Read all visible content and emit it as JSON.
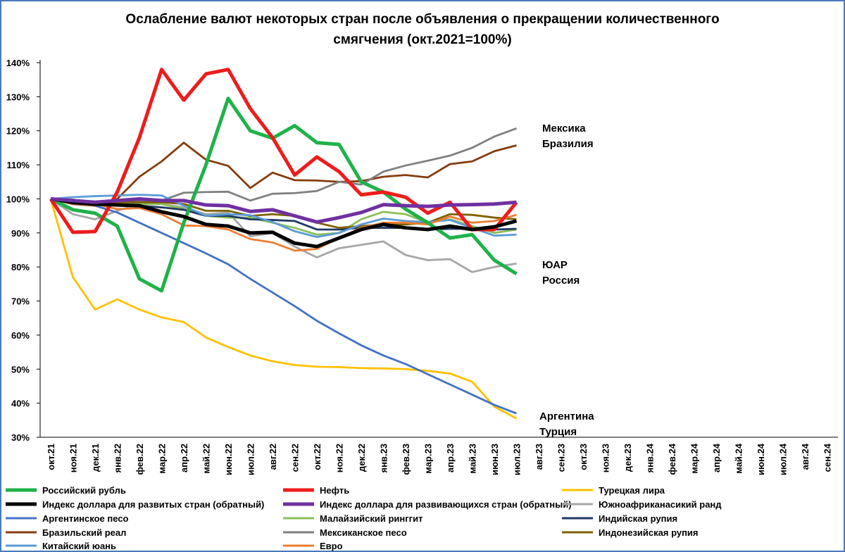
{
  "chart_data": {
    "type": "line",
    "title": "Ослабление валют некоторых стран после объявления о прекращении количественного",
    "subtitle": "смягчения  (окт.2021=100%)",
    "categories": [
      "окт.21",
      "ноя.21",
      "дек.21",
      "янв.22",
      "фев.22",
      "мар.22",
      "апр.22",
      "май.22",
      "июн.22",
      "июл.22",
      "авг.22",
      "сен.22",
      "окт.22",
      "ноя.22",
      "дек.22",
      "янв.23",
      "фев.23",
      "мар.23",
      "апр.23",
      "май.23",
      "июн.23",
      "июл.23",
      "авг.23",
      "сен.23",
      "окт.23",
      "ноя.23",
      "дек.23",
      "янв.24",
      "фев.24",
      "мар.24",
      "апр.24",
      "май.24",
      "июн.24",
      "июл.24",
      "авг.24",
      "сен.24"
    ],
    "ylim": [
      30,
      140
    ],
    "yticks": [
      {
        "value": 30,
        "label": "30%"
      },
      {
        "value": 40,
        "label": "40%"
      },
      {
        "value": 50,
        "label": "50%"
      },
      {
        "value": 60,
        "label": "60%"
      },
      {
        "value": 70,
        "label": "70%"
      },
      {
        "value": 80,
        "label": "80%"
      },
      {
        "value": 90,
        "label": "90%"
      },
      {
        "value": 100,
        "label": "100%"
      },
      {
        "value": 110,
        "label": "110%"
      },
      {
        "value": 120,
        "label": "120%"
      },
      {
        "value": 130,
        "label": "130%"
      },
      {
        "value": 140,
        "label": "140%"
      }
    ],
    "grid": false,
    "annotations": [
      "Мексика",
      "Бразилия",
      "ЮАР",
      "Россия",
      "Аргентина",
      "Турция"
    ],
    "series": [
      {
        "name": "Российский рубль",
        "color": "#1fb24a",
        "values": [
          100,
          96.8,
          95.8,
          92,
          76.5,
          73,
          93,
          110,
          129.5,
          120,
          117.8,
          121.5,
          116.5,
          116,
          105,
          102,
          97,
          93,
          88.5,
          89.5,
          82,
          78,
          null,
          null,
          null,
          null,
          null,
          null,
          null,
          null,
          null,
          null,
          null,
          null,
          null,
          null
        ]
      },
      {
        "name": "Нефть",
        "color": "#ee1c1c",
        "values": [
          100,
          90.2,
          90.4,
          102,
          118,
          138,
          129,
          136.7,
          138,
          126.5,
          118,
          107,
          112.3,
          108,
          101.2,
          102,
          100.5,
          95.8,
          99,
          91,
          91,
          99,
          null,
          null,
          null,
          null,
          null,
          null,
          null,
          null,
          null,
          null,
          null,
          null,
          null,
          null
        ]
      },
      {
        "name": "Турецкая лира",
        "color": "#ffc000",
        "values": [
          100,
          77,
          67.5,
          70.5,
          67.5,
          65.2,
          63.8,
          59.3,
          56.5,
          54,
          52.3,
          51.2,
          50.7,
          50.6,
          50.3,
          50.2,
          50,
          49.5,
          48.7,
          46.3,
          39,
          35.5,
          null,
          null,
          null,
          null,
          null,
          null,
          null,
          null,
          null,
          null,
          null,
          null,
          null,
          null
        ]
      },
      {
        "name": "Индекс доллара для развитых стран (обратный)",
        "color": "#000000",
        "values": [
          100,
          99,
          98.5,
          98.2,
          98,
          96.2,
          94.8,
          92.5,
          92,
          90,
          90.2,
          87,
          86,
          88.5,
          91,
          92.5,
          91.5,
          91,
          92,
          91,
          91.8,
          93.5,
          null,
          null,
          null,
          null,
          null,
          null,
          null,
          null,
          null,
          null,
          null,
          null,
          null,
          null
        ]
      },
      {
        "name": "Индекс доллара для развивающихся стран (обратный)",
        "color": "#7030a0",
        "values": [
          100,
          99.5,
          99,
          99.5,
          100,
          99.5,
          99.5,
          98.2,
          98,
          96.3,
          96.8,
          95,
          93.2,
          94.5,
          96,
          98.3,
          98,
          97.8,
          98.2,
          98.3,
          98.5,
          99,
          null,
          null,
          null,
          null,
          null,
          null,
          null,
          null,
          null,
          null,
          null,
          null,
          null,
          null
        ]
      },
      {
        "name": "Южноафриканасикий ранд",
        "color": "#a6a6a6",
        "values": [
          100,
          95.5,
          94,
          96.5,
          98.5,
          98.5,
          97.5,
          95.5,
          96,
          89,
          90,
          86,
          82.8,
          85.5,
          86.5,
          87.5,
          83.5,
          82,
          82.3,
          78.5,
          80,
          81,
          null,
          null,
          null,
          null,
          null,
          null,
          null,
          null,
          null,
          null,
          null,
          null,
          null,
          null
        ]
      },
      {
        "name": "Аргентинское песо",
        "color": "#4472c4",
        "values": [
          100,
          99,
          98,
          96,
          93,
          90,
          87,
          84,
          80.8,
          76.5,
          72.5,
          68.5,
          64.2,
          60.5,
          57,
          54,
          51.5,
          48.5,
          45.5,
          42.5,
          39.5,
          37,
          null,
          null,
          null,
          null,
          null,
          null,
          null,
          null,
          null,
          null,
          null,
          null,
          null,
          null
        ]
      },
      {
        "name": "Малайзийский ринггит",
        "color": "#8cbf5a",
        "values": [
          100,
          99.5,
          98.5,
          99,
          98.5,
          98.5,
          97,
          95,
          94.5,
          94.5,
          93,
          91.5,
          89.5,
          90,
          94,
          96.2,
          95.5,
          93,
          94,
          92,
          90,
          91,
          null,
          null,
          null,
          null,
          null,
          null,
          null,
          null,
          null,
          null,
          null,
          null,
          null,
          null
        ]
      },
      {
        "name": "Индийская рупия",
        "color": "#1f3864",
        "values": [
          100,
          99.5,
          99,
          98.5,
          98,
          97.5,
          96.8,
          95,
          95,
          94,
          93.8,
          93.5,
          91,
          91,
          91.5,
          91.5,
          91.5,
          91,
          91.2,
          91.2,
          91,
          91.2,
          null,
          null,
          null,
          null,
          null,
          null,
          null,
          null,
          null,
          null,
          null,
          null,
          null,
          null
        ]
      },
      {
        "name": "Бразильский реал",
        "color": "#843c0c",
        "values": [
          100,
          98.5,
          98,
          100,
          106.5,
          111,
          116.5,
          111.5,
          109.7,
          103.2,
          107.7,
          105.5,
          105.4,
          105,
          105.2,
          106.5,
          107,
          106.3,
          110.2,
          111,
          114,
          115.7,
          null,
          null,
          null,
          null,
          null,
          null,
          null,
          null,
          null,
          null,
          null,
          null,
          null,
          null
        ]
      },
      {
        "name": "Мексиканское песо",
        "color": "#808080",
        "values": [
          100,
          99.8,
          98.5,
          99,
          99.5,
          99.5,
          101.8,
          102,
          102.1,
          99.5,
          101.5,
          101.7,
          102.3,
          105,
          104.2,
          108,
          109.8,
          111.2,
          112.7,
          115,
          118.3,
          120.7,
          null,
          null,
          null,
          null,
          null,
          null,
          null,
          null,
          null,
          null,
          null,
          null,
          null,
          null
        ]
      },
      {
        "name": "Индонезийская рупия",
        "color": "#7f6000",
        "values": [
          100,
          99.5,
          98.5,
          99,
          99,
          99,
          98.5,
          96.5,
          96.5,
          95,
          95.5,
          95,
          93,
          91.5,
          92,
          92.5,
          92.5,
          93,
          95.5,
          95.3,
          94.5,
          94,
          null,
          null,
          null,
          null,
          null,
          null,
          null,
          null,
          null,
          null,
          null,
          null,
          null,
          null
        ]
      },
      {
        "name": "Китайский юань",
        "color": "#5b9bd5",
        "values": [
          100,
          100.5,
          100.8,
          101,
          101.2,
          101,
          98,
          95,
          95.5,
          95.2,
          93.2,
          90.5,
          88.8,
          90,
          92.5,
          94.2,
          93.5,
          93.2,
          93.8,
          91.5,
          89.2,
          89.5,
          null,
          null,
          null,
          null,
          null,
          null,
          null,
          null,
          null,
          null,
          null,
          null,
          null,
          null
        ]
      },
      {
        "name": "Евро",
        "color": "#ed7d31",
        "values": [
          100,
          99,
          98.5,
          97,
          97.3,
          95.5,
          92.2,
          92,
          91,
          88.2,
          87.2,
          84.8,
          85.3,
          88.5,
          91.5,
          93,
          93,
          92.5,
          94.8,
          93,
          93.5,
          95.3,
          null,
          null,
          null,
          null,
          null,
          null,
          null,
          null,
          null,
          null,
          null,
          null,
          null,
          null
        ]
      }
    ]
  }
}
